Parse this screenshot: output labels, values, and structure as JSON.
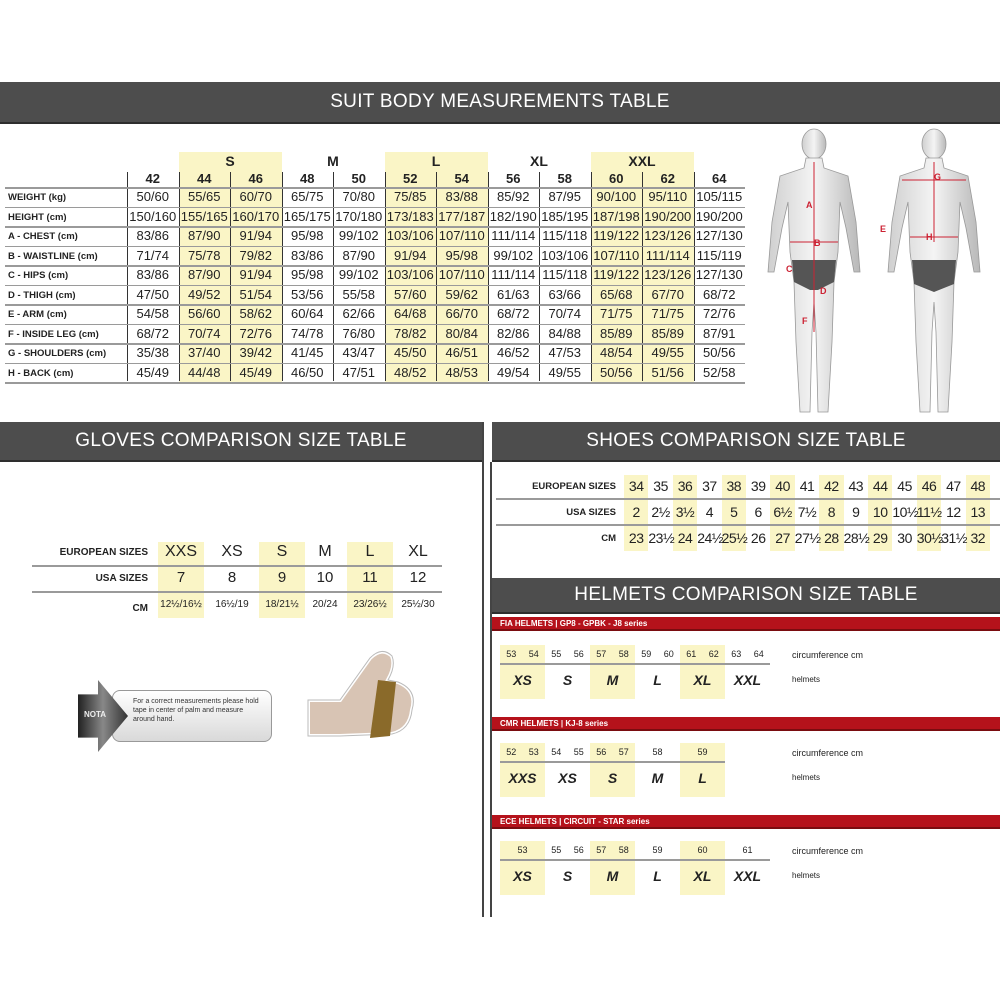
{
  "colors": {
    "header_bg": "#4d4d4d",
    "highlight": "#faf5c6",
    "red_bar": "#b5121b"
  },
  "suit": {
    "title": "SUIT BODY MEASUREMENTS TABLE",
    "groups": [
      {
        "label": "S",
        "cols": [
          1,
          2
        ]
      },
      {
        "label": "M",
        "cols": [
          3,
          4
        ]
      },
      {
        "label": "L",
        "cols": [
          5,
          6
        ]
      },
      {
        "label": "XL",
        "cols": [
          7,
          8
        ]
      },
      {
        "label": "XXL",
        "cols": [
          9,
          10
        ]
      }
    ],
    "highlight_groups": [
      "S",
      "L",
      "XXL"
    ],
    "sizes": [
      "42",
      "44",
      "46",
      "48",
      "50",
      "52",
      "54",
      "56",
      "58",
      "60",
      "62",
      "64"
    ],
    "rows": [
      {
        "label": "WEIGHT (kg)",
        "values": [
          "50/60",
          "55/65",
          "60/70",
          "65/75",
          "70/80",
          "75/85",
          "83/88",
          "85/92",
          "87/95",
          "90/100",
          "95/110",
          "105/115"
        ]
      },
      {
        "label": "HEIGHT (cm)",
        "values": [
          "150/160",
          "155/165",
          "160/170",
          "165/175",
          "170/180",
          "173/183",
          "177/187",
          "182/190",
          "185/195",
          "187/198",
          "190/200",
          "190/200"
        ]
      },
      {
        "label": "A - CHEST (cm)",
        "values": [
          "83/86",
          "87/90",
          "91/94",
          "95/98",
          "99/102",
          "103/106",
          "107/110",
          "111/114",
          "115/118",
          "119/122",
          "123/126",
          "127/130"
        ]
      },
      {
        "label": "B - WAISTLINE (cm)",
        "values": [
          "71/74",
          "75/78",
          "79/82",
          "83/86",
          "87/90",
          "91/94",
          "95/98",
          "99/102",
          "103/106",
          "107/110",
          "111/114",
          "115/119"
        ]
      },
      {
        "label": "C - HIPS (cm)",
        "values": [
          "83/86",
          "87/90",
          "91/94",
          "95/98",
          "99/102",
          "103/106",
          "107/110",
          "111/114",
          "115/118",
          "119/122",
          "123/126",
          "127/130"
        ]
      },
      {
        "label": "D - THIGH (cm)",
        "values": [
          "47/50",
          "49/52",
          "51/54",
          "53/56",
          "55/58",
          "57/60",
          "59/62",
          "61/63",
          "63/66",
          "65/68",
          "67/70",
          "68/72"
        ]
      },
      {
        "label": "E - ARM (cm)",
        "values": [
          "54/58",
          "56/60",
          "58/62",
          "60/64",
          "62/66",
          "64/68",
          "66/70",
          "68/72",
          "70/74",
          "71/75",
          "71/75",
          "72/76"
        ]
      },
      {
        "label": "F - INSIDE LEG (cm)",
        "values": [
          "68/72",
          "70/74",
          "72/76",
          "74/78",
          "76/80",
          "78/82",
          "80/84",
          "82/86",
          "84/88",
          "85/89",
          "85/89",
          "87/91"
        ]
      },
      {
        "label": "G - SHOULDERS (cm)",
        "values": [
          "35/38",
          "37/40",
          "39/42",
          "41/45",
          "43/47",
          "45/50",
          "46/51",
          "46/52",
          "47/53",
          "48/54",
          "49/55",
          "50/56"
        ]
      },
      {
        "label": "H - BACK (cm)",
        "values": [
          "45/49",
          "44/48",
          "45/49",
          "46/50",
          "47/51",
          "48/52",
          "48/53",
          "49/54",
          "49/55",
          "50/56",
          "51/56",
          "52/58"
        ]
      }
    ],
    "figure_labels": [
      "A",
      "B",
      "C",
      "D",
      "E",
      "F",
      "G",
      "H"
    ]
  },
  "gloves": {
    "title": "GLOVES COMPARISON SIZE TABLE",
    "row_labels": [
      "EUROPEAN SIZES",
      "USA SIZES",
      "CM"
    ],
    "european": [
      "XXS",
      "XS",
      "S",
      "M",
      "L",
      "XL"
    ],
    "usa": [
      "7",
      "8",
      "9",
      "10",
      "11",
      "12"
    ],
    "cm": [
      "12½/16½",
      "16½/19",
      "18/21½",
      "20/24",
      "23/26½",
      "25½/30"
    ],
    "highlight": [
      0,
      2,
      4
    ],
    "note_tag": "NOTA",
    "note": "For a correct measurements please hold tape in center of palm and measure around hand."
  },
  "shoes": {
    "title": "SHOES COMPARISON SIZE TABLE",
    "row_labels": [
      "EUROPEAN SIZES",
      "USA SIZES",
      "CM"
    ],
    "european": [
      "34",
      "35",
      "36",
      "37",
      "38",
      "39",
      "40",
      "41",
      "42",
      "43",
      "44",
      "45",
      "46",
      "47",
      "48"
    ],
    "usa": [
      "2",
      "2½",
      "3½",
      "4",
      "5",
      "6",
      "6½",
      "7½",
      "8",
      "9",
      "10",
      "10½",
      "11½",
      "12",
      "13"
    ],
    "cm": [
      "23",
      "23½",
      "24",
      "24½",
      "25½",
      "26",
      "27",
      "27½",
      "28",
      "28½",
      "29",
      "30",
      "30½",
      "31½",
      "32"
    ],
    "highlight": [
      0,
      2,
      4,
      6,
      8,
      10,
      12,
      14
    ]
  },
  "helmets": {
    "title": "HELMETS COMPARISON SIZE TABLE",
    "circ_label": "circumference cm",
    "size_label": "helmets",
    "sections": [
      {
        "title": "FIA HELMETS | GP8 - GPBK - J8 series",
        "groups": [
          {
            "nums": [
              "53",
              "54"
            ],
            "size": "XS",
            "hl": true
          },
          {
            "nums": [
              "55",
              "56"
            ],
            "size": "S",
            "hl": false
          },
          {
            "nums": [
              "57",
              "58"
            ],
            "size": "M",
            "hl": true
          },
          {
            "nums": [
              "59",
              "60"
            ],
            "size": "L",
            "hl": false
          },
          {
            "nums": [
              "61",
              "62"
            ],
            "size": "XL",
            "hl": true
          },
          {
            "nums": [
              "63",
              "64"
            ],
            "size": "XXL",
            "hl": false
          }
        ]
      },
      {
        "title": "CMR HELMETS | KJ-8 series",
        "groups": [
          {
            "nums": [
              "52",
              "53"
            ],
            "size": "XXS",
            "hl": true
          },
          {
            "nums": [
              "54",
              "55"
            ],
            "size": "XS",
            "hl": false
          },
          {
            "nums": [
              "56",
              "57"
            ],
            "size": "S",
            "hl": true
          },
          {
            "nums": [
              "58"
            ],
            "size": "M",
            "hl": false
          },
          {
            "nums": [
              "59"
            ],
            "size": "L",
            "hl": true
          }
        ]
      },
      {
        "title": "ECE HELMETS | CIRCUIT - STAR series",
        "groups": [
          {
            "nums": [
              "53"
            ],
            "size": "XS",
            "hl": true
          },
          {
            "nums": [
              "55",
              "56"
            ],
            "size": "S",
            "hl": false
          },
          {
            "nums": [
              "57",
              "58"
            ],
            "size": "M",
            "hl": true
          },
          {
            "nums": [
              "59"
            ],
            "size": "L",
            "hl": false
          },
          {
            "nums": [
              "60"
            ],
            "size": "XL",
            "hl": true
          },
          {
            "nums": [
              "61"
            ],
            "size": "XXL",
            "hl": false
          }
        ]
      }
    ]
  }
}
